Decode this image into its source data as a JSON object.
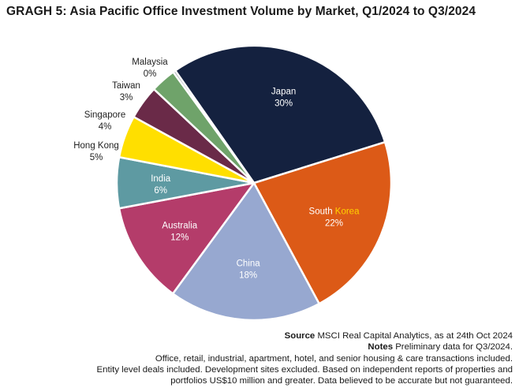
{
  "title": "GRAGH 5: Asia Pacific Office Investment Volume by Market, Q1/2024 to Q3/2024",
  "chart_data": {
    "type": "pie",
    "title": "GRAGH 5: Asia Pacific Office Investment Volume by Market, Q1/2024 to Q3/2024",
    "slices": [
      {
        "name": "Japan",
        "name_parts": [
          {
            "text": "Japan",
            "color": "#ffffff"
          }
        ],
        "label": "30%",
        "value": 30,
        "color": "#14213f",
        "label_color": "#ffffff",
        "label_inside": true
      },
      {
        "name": "South Korea",
        "name_parts": [
          {
            "text": "South ",
            "color": "#ffffff"
          },
          {
            "text": "Korea",
            "color": "#ffd200"
          }
        ],
        "label": "22%",
        "value": 22,
        "color": "#dc5a17",
        "label_color": "#ffffff",
        "label_inside": true
      },
      {
        "name": "China",
        "name_parts": [
          {
            "text": "China",
            "color": "#ffffff"
          }
        ],
        "label": "18%",
        "value": 18,
        "color": "#97a8d0",
        "label_color": "#ffffff",
        "label_inside": true
      },
      {
        "name": "Australia",
        "name_parts": [
          {
            "text": "Australia",
            "color": "#ffffff"
          }
        ],
        "label": "12%",
        "value": 12,
        "color": "#b43c6a",
        "label_color": "#ffffff",
        "label_inside": true
      },
      {
        "name": "India",
        "name_parts": [
          {
            "text": "India",
            "color": "#ffffff"
          }
        ],
        "label": "6%",
        "value": 6,
        "color": "#5e9aa2",
        "label_color": "#ffffff",
        "label_inside": true
      },
      {
        "name": "Hong Kong",
        "name_parts": [
          {
            "text": "Hong Kong",
            "color": "#222222"
          }
        ],
        "label": "5%",
        "value": 5,
        "color": "#ffdf00",
        "label_color": "#222222",
        "label_inside": false
      },
      {
        "name": "Singapore",
        "name_parts": [
          {
            "text": "Singapore",
            "color": "#222222"
          }
        ],
        "label": "4%",
        "value": 4,
        "color": "#6a2a48",
        "label_color": "#222222",
        "label_inside": false
      },
      {
        "name": "Taiwan",
        "name_parts": [
          {
            "text": "Taiwan",
            "color": "#222222"
          }
        ],
        "label": "3%",
        "value": 3,
        "color": "#6fa36a",
        "label_color": "#222222",
        "label_inside": false
      },
      {
        "name": "Malaysia",
        "name_parts": [
          {
            "text": "Malaysia",
            "color": "#222222"
          }
        ],
        "label": "0%",
        "value": 0.3,
        "color": "#9aa0a8",
        "label_color": "#222222",
        "label_inside": false
      }
    ],
    "start": "Japan slice begins just clockwise of the Malaysia slice at upper-left; slices proceed clockwise",
    "border_color": "#ffffff"
  },
  "footer": {
    "source_label": "Source",
    "source_text": " MSCI Real Capital Analytics, as at 24th Oct 2024",
    "notes_label": "Notes",
    "notes_text": " Preliminary data for Q3/2024.",
    "line3": "Office, retail, industrial, apartment, hotel, and senior housing & care transactions included.",
    "line4": "Entity level deals included. Development sites excluded.  Based on independent reports of properties and",
    "line5": "portfolios US$10 million and greater. Data believed to be accurate but not guaranteed."
  }
}
